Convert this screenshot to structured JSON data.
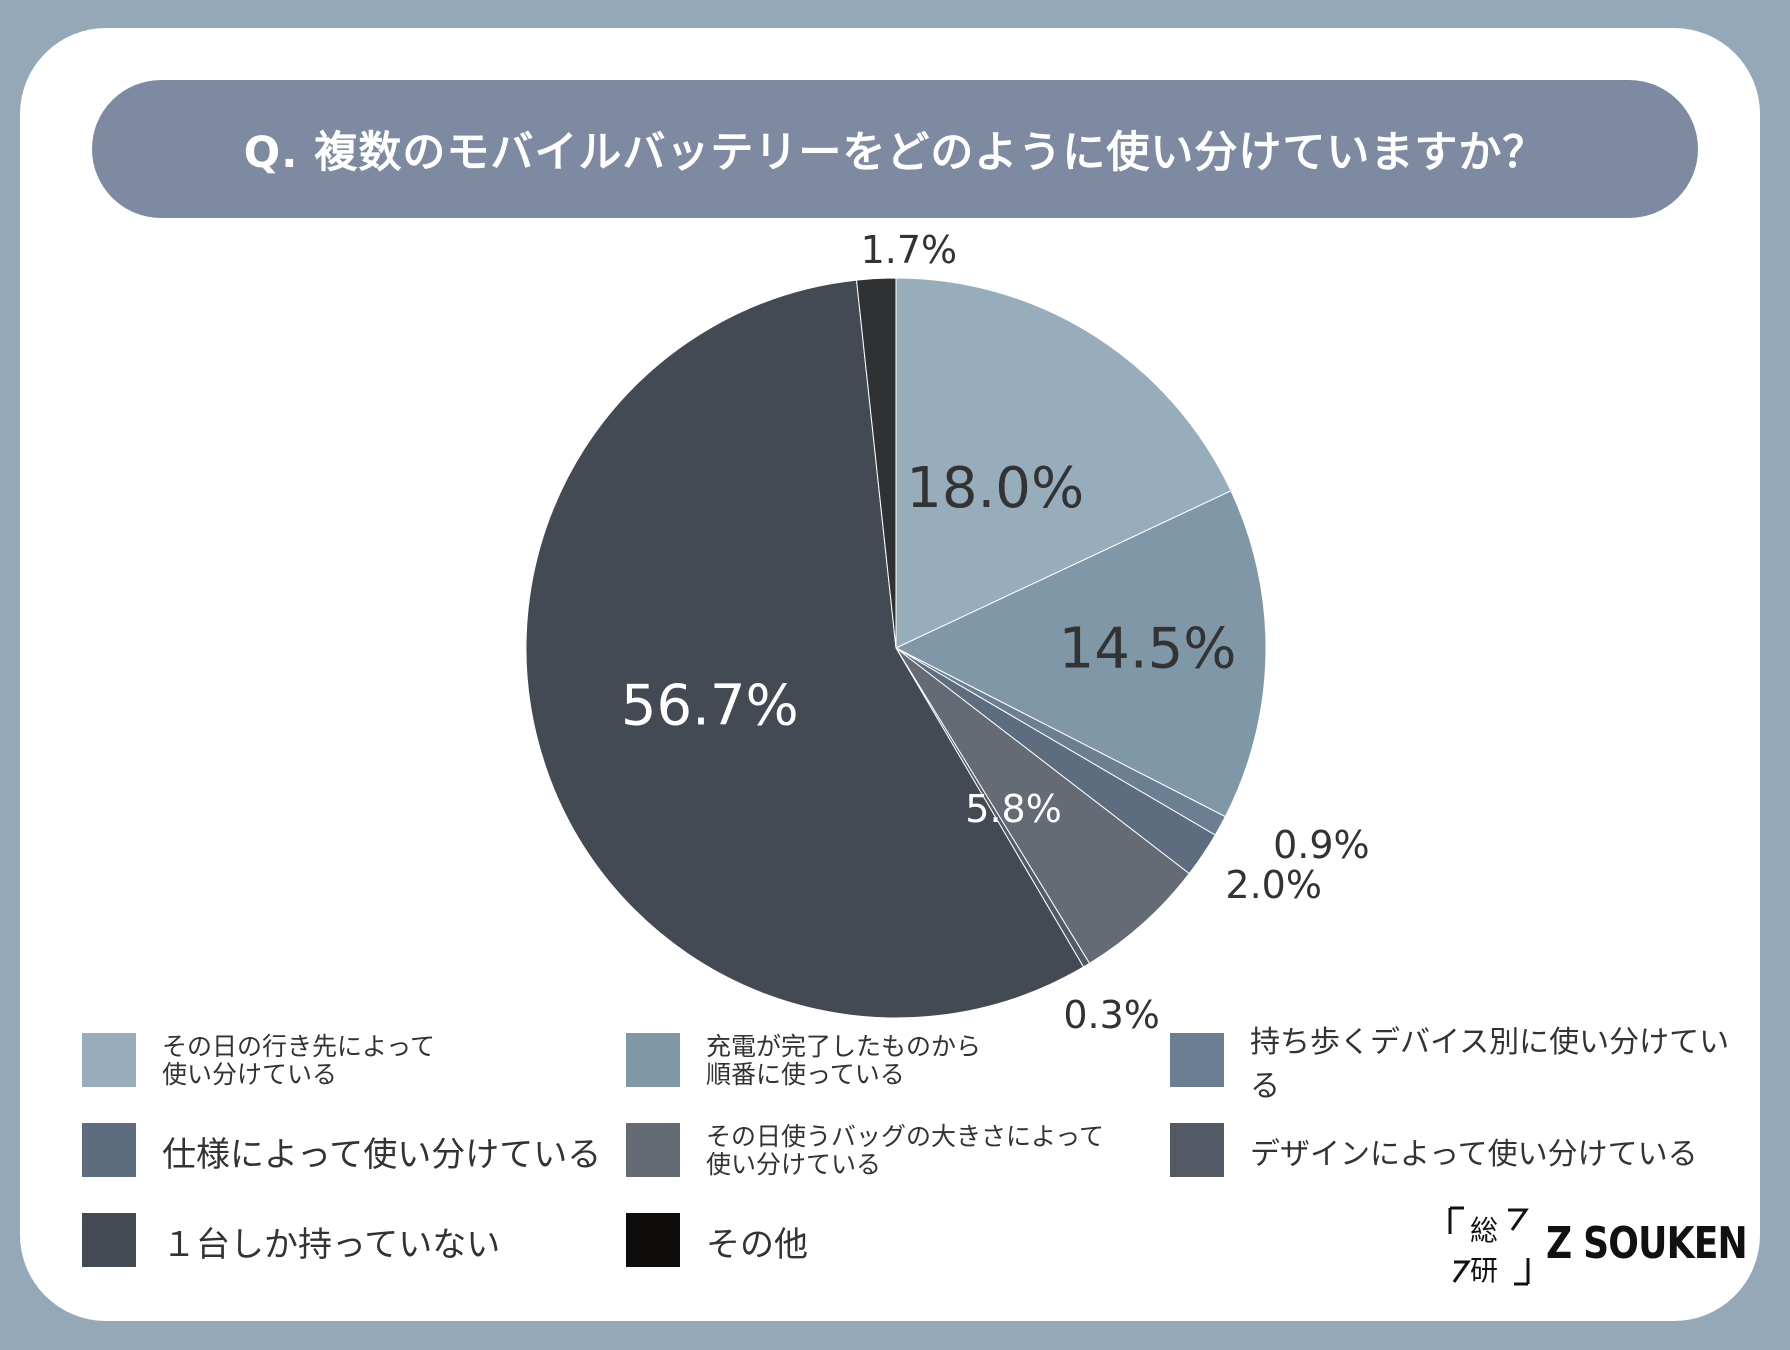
{
  "title": "Q. 複数のモバイルバッテリーをどのように使い分けていますか？",
  "chart_data": {
    "type": "pie",
    "slices": [
      {
        "label": "その日の行き先によって\n使い分けている",
        "value": 18.0,
        "display": "18.0%",
        "color": "#97adbb"
      },
      {
        "label": "充電が完了したものから\n順番に使っている",
        "value": 14.5,
        "display": "14.5%",
        "color": "#8097a8"
      },
      {
        "label": "持ち歩くデバイス別に使い分けている",
        "value": 0.9,
        "display": "0.9%",
        "color": "#6c7f92"
      },
      {
        "label": "仕様によって使い分けている",
        "value": 2.0,
        "display": "2.0%",
        "color": "#5d6d7f"
      },
      {
        "label": "その日使うバッグの大きさによって\n使い分けている",
        "value": 5.8,
        "display": "5.8%",
        "color": "#646b75"
      },
      {
        "label": "デザインによって使い分けている",
        "value": 0.3,
        "display": "0.3%",
        "color": "#545a65"
      },
      {
        "label": "１台しか持っていない",
        "value": 56.7,
        "display": "56.7%",
        "color": "#444a53"
      },
      {
        "label": "その他",
        "value": 1.7,
        "display": "1.7%",
        "color": "#2f3133"
      }
    ],
    "legend_placement": "bottom",
    "start_angle": "top, clockwise"
  },
  "legend_swatch_colors": [
    "#97adbb",
    "#8097a8",
    "#6c7f92",
    "#5d6d7f",
    "#646b75",
    "#545a65",
    "#444a53",
    "#0e0b0b"
  ],
  "logo": {
    "kanji": "総研",
    "text": "Z SOUKEN"
  }
}
